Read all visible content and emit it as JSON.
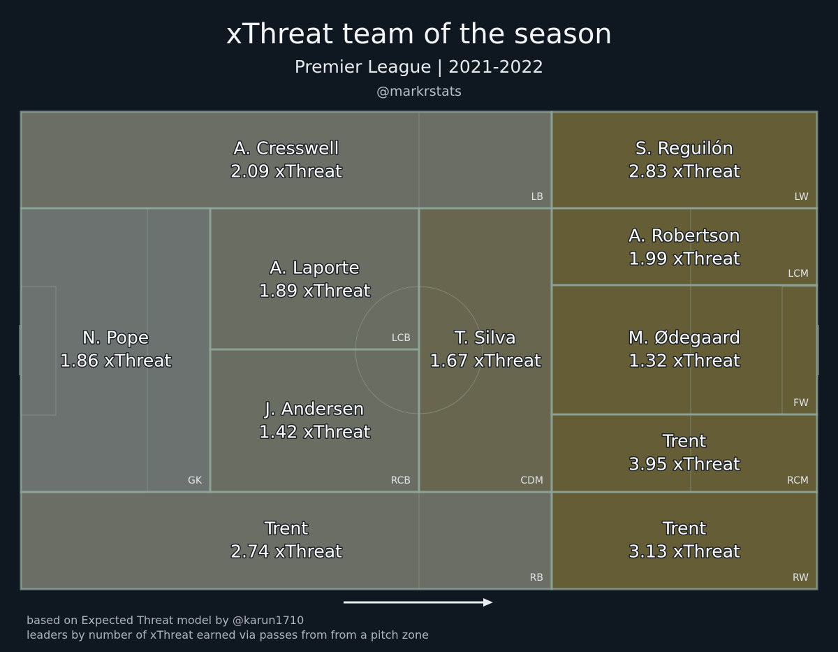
{
  "title": "xThreat team of the season",
  "subtitle": "Premier League | 2021-2022",
  "handle": "@markrstats",
  "footer": {
    "line1": "based on Expected Threat model by @karun1710",
    "line2": "leaders by number of xThreat earned via passes from from a pitch zone"
  },
  "colors": {
    "background": "#0f1820",
    "pitch_line": "#8fa59a",
    "low": "#6c7270",
    "high": "#655d35"
  },
  "chart_data": {
    "type": "heatmap",
    "unit_label": "xThreat",
    "attack_direction": "left-to-right",
    "zones": [
      {
        "position": "GK",
        "player": "N. Pope",
        "value": 1.86,
        "value_label": "1.86 xThreat"
      },
      {
        "position": "LB",
        "player": "A. Cresswell",
        "value": 2.09,
        "value_label": "2.09 xThreat"
      },
      {
        "position": "LCB",
        "player": "A. Laporte",
        "value": 1.89,
        "value_label": "1.89 xThreat"
      },
      {
        "position": "RCB",
        "player": "J. Andersen",
        "value": 1.42,
        "value_label": "1.42 xThreat"
      },
      {
        "position": "RB",
        "player": "Trent",
        "value": 2.74,
        "value_label": "2.74 xThreat"
      },
      {
        "position": "CDM",
        "player": "T. Silva",
        "value": 1.67,
        "value_label": "1.67 xThreat"
      },
      {
        "position": "LW",
        "player": "S. Reguilón",
        "value": 2.83,
        "value_label": "2.83 xThreat"
      },
      {
        "position": "LCM",
        "player": "A. Robertson",
        "value": 1.99,
        "value_label": "1.99 xThreat"
      },
      {
        "position": "FW",
        "player": "M. Ødegaard",
        "value": 1.32,
        "value_label": "1.32 xThreat"
      },
      {
        "position": "RCM",
        "player": "Trent",
        "value": 3.95,
        "value_label": "3.95 xThreat"
      },
      {
        "position": "RW",
        "player": "Trent",
        "value": 3.13,
        "value_label": "3.13 xThreat"
      }
    ]
  }
}
